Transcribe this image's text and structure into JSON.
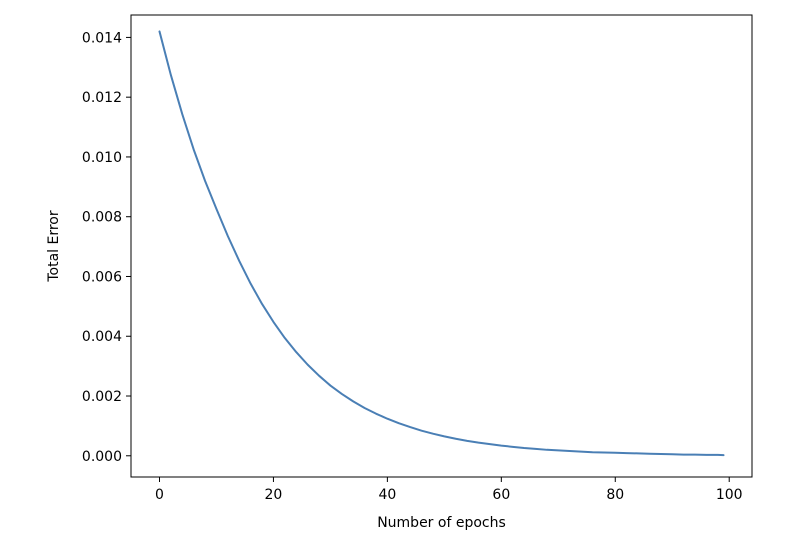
{
  "chart_data": {
    "type": "line",
    "title": "",
    "xlabel": "Number of epochs",
    "ylabel": "Total Error",
    "xlim": [
      -5,
      104
    ],
    "ylim": [
      -0.00071,
      0.01475
    ],
    "xticks": [
      0,
      20,
      40,
      60,
      80,
      100
    ],
    "yticks": [
      0.0,
      0.002,
      0.004,
      0.006,
      0.008,
      0.01,
      0.012,
      0.014
    ],
    "xtick_labels": [
      "0",
      "20",
      "40",
      "60",
      "80",
      "100"
    ],
    "ytick_labels": [
      "0.000",
      "0.002",
      "0.004",
      "0.006",
      "0.008",
      "0.010",
      "0.012",
      "0.014"
    ],
    "grid": false,
    "legend": "none",
    "series": [
      {
        "color": "#4a7fb5",
        "x": [
          0,
          2,
          4,
          6,
          8,
          10,
          12,
          14,
          16,
          18,
          20,
          22,
          24,
          26,
          28,
          30,
          32,
          34,
          36,
          38,
          40,
          42,
          44,
          46,
          48,
          50,
          52,
          54,
          56,
          58,
          60,
          62,
          64,
          66,
          68,
          70,
          72,
          74,
          76,
          78,
          80,
          82,
          84,
          86,
          88,
          90,
          92,
          94,
          96,
          98,
          99
        ],
        "values": [
          0.0142,
          0.01274,
          0.01143,
          0.01025,
          0.0092,
          0.00826,
          0.00735,
          0.00652,
          0.00576,
          0.00508,
          0.00448,
          0.00394,
          0.00347,
          0.00305,
          0.00268,
          0.00235,
          0.00207,
          0.00182,
          0.0016,
          0.00141,
          0.00124,
          0.00109,
          0.00096,
          0.00084,
          0.00074,
          0.00065,
          0.00057,
          0.0005,
          0.00044,
          0.00039,
          0.00034,
          0.0003,
          0.00026,
          0.00023,
          0.0002,
          0.00018,
          0.00016,
          0.00014,
          0.00012,
          0.00011,
          0.0001,
          9e-05,
          8e-05,
          7e-05,
          6e-05,
          5e-05,
          4e-05,
          4e-05,
          3e-05,
          3e-05,
          2e-05
        ]
      }
    ]
  }
}
